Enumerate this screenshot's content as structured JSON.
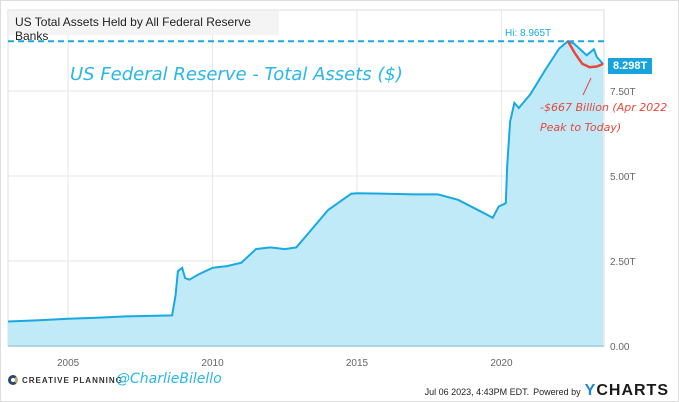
{
  "header": {
    "title": "US Total Assets Held by All Federal Reserve Banks"
  },
  "annotations": {
    "chart_label": "US Federal Reserve - Total Assets ($)",
    "decline": "-$667 Billion (Apr 2022 Peak to Today)",
    "high": "Hi: 8.965T",
    "current": "8.298T"
  },
  "footer": {
    "brand": "CREATIVE PLANNING",
    "handle": "@CharlieBilello",
    "timestamp": "Jul 06 2023, 4:43PM EDT.",
    "powered": "Powered by",
    "ycharts_y": "Y",
    "ycharts_rest": "CHARTS"
  },
  "colors": {
    "line": "#19a9e1",
    "fill": "#c0eaf8",
    "annotation": "#e8473c"
  },
  "chart_data": {
    "type": "area",
    "title": "US Total Assets Held by All Federal Reserve Banks",
    "xlim": [
      2002.92,
      2023.55
    ],
    "ylim": [
      0,
      9.5
    ],
    "x_ticks": [
      {
        "v": 2005,
        "label": "2005"
      },
      {
        "v": 2010,
        "label": "2010"
      },
      {
        "v": 2015,
        "label": "2015"
      },
      {
        "v": 2020,
        "label": "2020"
      }
    ],
    "y_ticks": [
      {
        "v": 0,
        "label": "0.00"
      },
      {
        "v": 2.5,
        "label": "2.50T"
      },
      {
        "v": 5,
        "label": "5.00T"
      },
      {
        "v": 7.5,
        "label": "7.50T"
      }
    ],
    "grid": true,
    "high": 8.965,
    "last": 8.298,
    "series": [
      {
        "x": [
          2002.92,
          2004,
          2005,
          2006,
          2007,
          2008.6,
          2008.72,
          2008.8,
          2008.95,
          2009.05,
          2009.2,
          2009.5,
          2010,
          2010.5,
          2011,
          2011.5,
          2012,
          2012.5,
          2012.9,
          2013.5,
          2014,
          2014.8,
          2015,
          2016,
          2017,
          2017.8,
          2018.5,
          2019.3,
          2019.7,
          2019.9,
          2020.15,
          2020.2,
          2020.3,
          2020.45,
          2020.6,
          2021,
          2021.5,
          2022,
          2022.3,
          2022.5,
          2022.95,
          2023.2,
          2023.3,
          2023.52
        ],
        "y": [
          0.72,
          0.76,
          0.8,
          0.83,
          0.87,
          0.9,
          1.5,
          2.2,
          2.3,
          2.0,
          1.95,
          2.1,
          2.3,
          2.35,
          2.45,
          2.85,
          2.9,
          2.85,
          2.9,
          3.5,
          4.0,
          4.48,
          4.49,
          4.48,
          4.46,
          4.46,
          4.3,
          3.95,
          3.77,
          4.1,
          4.2,
          5.3,
          6.6,
          7.15,
          7.0,
          7.4,
          8.1,
          8.75,
          8.965,
          8.9,
          8.55,
          8.73,
          8.5,
          8.298
        ]
      }
    ],
    "annotation_curve": {
      "x": [
        2022.3,
        2022.55,
        2022.8,
        2023.05,
        2023.3,
        2023.52
      ],
      "y": [
        8.965,
        8.6,
        8.3,
        8.2,
        8.22,
        8.298
      ]
    }
  }
}
